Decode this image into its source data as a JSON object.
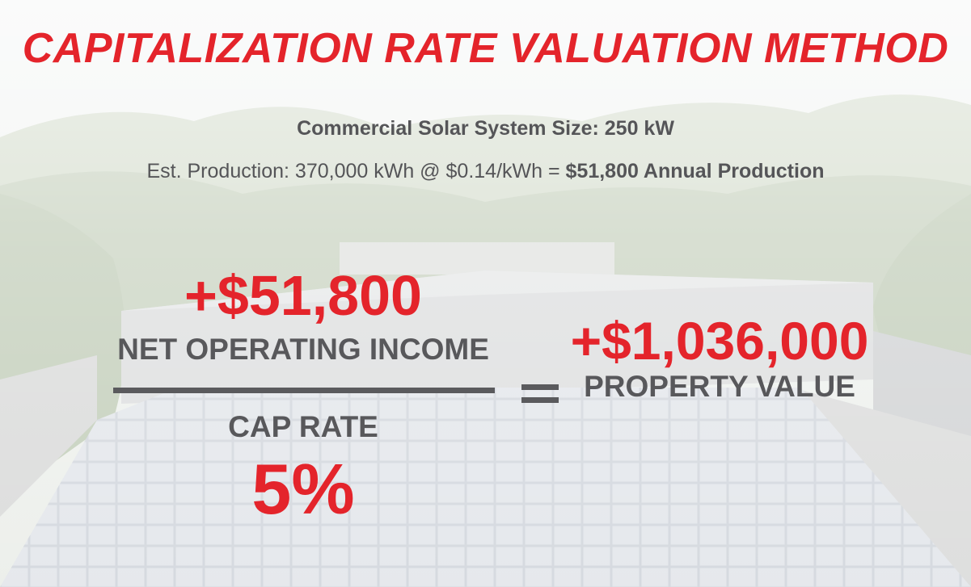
{
  "title": "CAPITALIZATION RATE VALUATION METHOD",
  "system_size": "Commercial Solar System Size: 250 kW",
  "production": {
    "prefix": "Est. Production: 370,000 kWh @ $0.14/kWh = ",
    "highlight": "$51,800 Annual Production"
  },
  "formula": {
    "noi_value": "+$51,800",
    "noi_label": "NET OPERATING INCOME",
    "cap_label": "CAP RATE",
    "cap_value": "5%",
    "result_value": "+$1,036,000",
    "result_label": "PROPERTY VALUE"
  },
  "colors": {
    "accent_red": "#e4242b",
    "text_grey": "#58585b"
  }
}
